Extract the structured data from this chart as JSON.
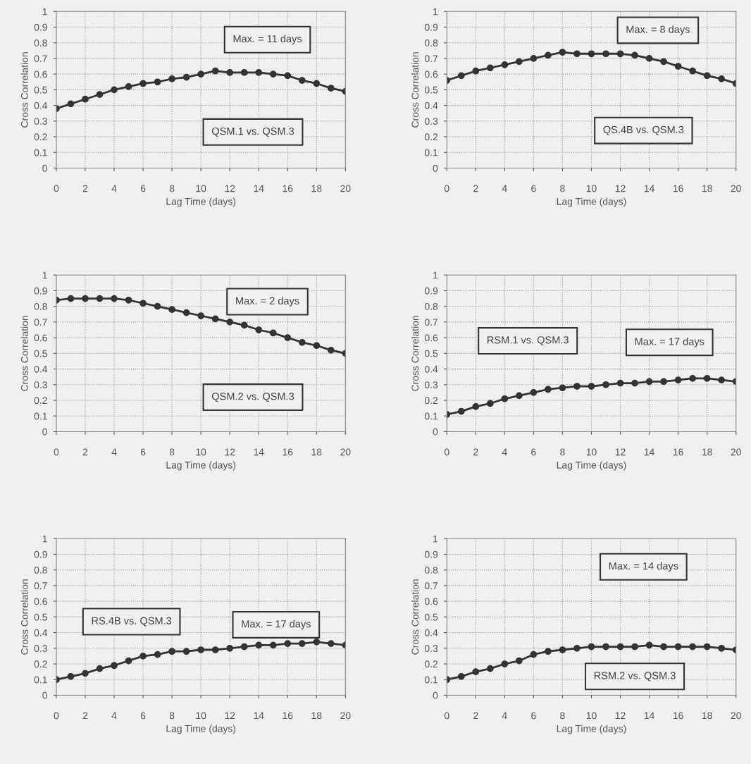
{
  "chart_data": [
    {
      "type": "line",
      "xlabel": "Lag Time (days)",
      "ylabel": "Cross Correlation",
      "x": [
        0,
        1,
        2,
        3,
        4,
        5,
        6,
        7,
        8,
        9,
        10,
        11,
        12,
        13,
        14,
        15,
        16,
        17,
        18,
        19,
        20
      ],
      "series": [
        {
          "color": "#333333",
          "values": [
            0.38,
            0.41,
            0.44,
            0.47,
            0.5,
            0.52,
            0.54,
            0.55,
            0.57,
            0.58,
            0.6,
            0.62,
            0.61,
            0.61,
            0.61,
            0.6,
            0.59,
            0.56,
            0.54,
            0.51,
            0.49
          ]
        }
      ],
      "xlim": [
        0,
        20
      ],
      "xticks": [
        0,
        2,
        4,
        6,
        8,
        10,
        12,
        14,
        16,
        18,
        20
      ],
      "ylim": [
        0,
        1
      ],
      "yticks": [
        0,
        0.1,
        0.2,
        0.3,
        0.4,
        0.5,
        0.6,
        0.7,
        0.8,
        0.9,
        1
      ],
      "grid": true,
      "marker": "circle",
      "line_style": "solid",
      "annotations": [
        "Max. = 11 days",
        "QSM.1 vs. QSM.3"
      ]
    },
    {
      "type": "line",
      "xlabel": "Lag Time (days)",
      "ylabel": "Cross Correlation",
      "x": [
        0,
        1,
        2,
        3,
        4,
        5,
        6,
        7,
        8,
        9,
        10,
        11,
        12,
        13,
        14,
        15,
        16,
        17,
        18,
        19,
        20
      ],
      "series": [
        {
          "color": "#333333",
          "values": [
            0.56,
            0.59,
            0.62,
            0.64,
            0.66,
            0.68,
            0.7,
            0.72,
            0.74,
            0.73,
            0.73,
            0.73,
            0.73,
            0.72,
            0.7,
            0.68,
            0.65,
            0.62,
            0.59,
            0.57,
            0.54
          ]
        }
      ],
      "xlim": [
        0,
        20
      ],
      "xticks": [
        0,
        2,
        4,
        6,
        8,
        10,
        12,
        14,
        16,
        18,
        20
      ],
      "ylim": [
        0,
        1
      ],
      "yticks": [
        0,
        0.1,
        0.2,
        0.3,
        0.4,
        0.5,
        0.6,
        0.7,
        0.8,
        0.9,
        1
      ],
      "grid": true,
      "marker": "circle",
      "line_style": "solid",
      "annotations": [
        "Max. = 8 days",
        "QS.4B vs. QSM.3"
      ]
    },
    {
      "type": "line",
      "xlabel": "Lag Time (days)",
      "ylabel": "Cross Correlation",
      "x": [
        0,
        1,
        2,
        3,
        4,
        5,
        6,
        7,
        8,
        9,
        10,
        11,
        12,
        13,
        14,
        15,
        16,
        17,
        18,
        19,
        20
      ],
      "series": [
        {
          "color": "#333333",
          "values": [
            0.84,
            0.85,
            0.85,
            0.85,
            0.85,
            0.84,
            0.82,
            0.8,
            0.78,
            0.76,
            0.74,
            0.72,
            0.7,
            0.68,
            0.65,
            0.63,
            0.6,
            0.57,
            0.55,
            0.52,
            0.5
          ]
        }
      ],
      "xlim": [
        0,
        20
      ],
      "xticks": [
        0,
        2,
        4,
        6,
        8,
        10,
        12,
        14,
        16,
        18,
        20
      ],
      "ylim": [
        0,
        1
      ],
      "yticks": [
        0,
        0.1,
        0.2,
        0.3,
        0.4,
        0.5,
        0.6,
        0.7,
        0.8,
        0.9,
        1
      ],
      "grid": true,
      "marker": "circle",
      "line_style": "solid",
      "annotations": [
        "Max. = 2 days",
        "QSM.2 vs. QSM.3"
      ]
    },
    {
      "type": "line",
      "xlabel": "Lag Time (days)",
      "ylabel": "Cross Correlation",
      "x": [
        0,
        1,
        2,
        3,
        4,
        5,
        6,
        7,
        8,
        9,
        10,
        11,
        12,
        13,
        14,
        15,
        16,
        17,
        18,
        19,
        20
      ],
      "series": [
        {
          "color": "#333333",
          "values": [
            0.11,
            0.13,
            0.16,
            0.18,
            0.21,
            0.23,
            0.25,
            0.27,
            0.28,
            0.29,
            0.29,
            0.3,
            0.31,
            0.31,
            0.32,
            0.32,
            0.33,
            0.34,
            0.34,
            0.33,
            0.32
          ]
        }
      ],
      "xlim": [
        0,
        20
      ],
      "xticks": [
        0,
        2,
        4,
        6,
        8,
        10,
        12,
        14,
        16,
        18,
        20
      ],
      "ylim": [
        0,
        1
      ],
      "yticks": [
        0,
        0.1,
        0.2,
        0.3,
        0.4,
        0.5,
        0.6,
        0.7,
        0.8,
        0.9,
        1
      ],
      "grid": true,
      "marker": "circle",
      "line_style": "solid",
      "annotations": [
        "RSM.1 vs. QSM.3",
        "Max. = 17 days"
      ]
    },
    {
      "type": "line",
      "xlabel": "Lag Time (days)",
      "ylabel": "Cross Correlation",
      "x": [
        0,
        1,
        2,
        3,
        4,
        5,
        6,
        7,
        8,
        9,
        10,
        11,
        12,
        13,
        14,
        15,
        16,
        17,
        18,
        19,
        20
      ],
      "series": [
        {
          "color": "#333333",
          "values": [
            0.1,
            0.12,
            0.14,
            0.17,
            0.19,
            0.22,
            0.25,
            0.26,
            0.28,
            0.28,
            0.29,
            0.29,
            0.3,
            0.31,
            0.32,
            0.32,
            0.33,
            0.33,
            0.34,
            0.33,
            0.32
          ]
        }
      ],
      "xlim": [
        0,
        20
      ],
      "xticks": [
        0,
        2,
        4,
        6,
        8,
        10,
        12,
        14,
        16,
        18,
        20
      ],
      "ylim": [
        0,
        1
      ],
      "yticks": [
        0,
        0.1,
        0.2,
        0.3,
        0.4,
        0.5,
        0.6,
        0.7,
        0.8,
        0.9,
        1
      ],
      "grid": true,
      "marker": "circle",
      "line_style": "solid",
      "annotations": [
        "RS.4B vs. QSM.3",
        "Max. = 17 days"
      ]
    },
    {
      "type": "line",
      "xlabel": "Lag Time (days)",
      "ylabel": "Cross Correlation",
      "x": [
        0,
        1,
        2,
        3,
        4,
        5,
        6,
        7,
        8,
        9,
        10,
        11,
        12,
        13,
        14,
        15,
        16,
        17,
        18,
        19,
        20
      ],
      "series": [
        {
          "color": "#333333",
          "values": [
            0.1,
            0.12,
            0.15,
            0.17,
            0.2,
            0.22,
            0.26,
            0.28,
            0.29,
            0.3,
            0.31,
            0.31,
            0.31,
            0.31,
            0.32,
            0.31,
            0.31,
            0.31,
            0.31,
            0.3,
            0.29
          ]
        }
      ],
      "xlim": [
        0,
        20
      ],
      "xticks": [
        0,
        2,
        4,
        6,
        8,
        10,
        12,
        14,
        16,
        18,
        20
      ],
      "ylim": [
        0,
        1
      ],
      "yticks": [
        0,
        0.1,
        0.2,
        0.3,
        0.4,
        0.5,
        0.6,
        0.7,
        0.8,
        0.9,
        1
      ],
      "grid": true,
      "marker": "circle",
      "line_style": "solid",
      "annotations": [
        "Max. = 14 days",
        "RSM.2 vs. QSM.3"
      ]
    }
  ]
}
